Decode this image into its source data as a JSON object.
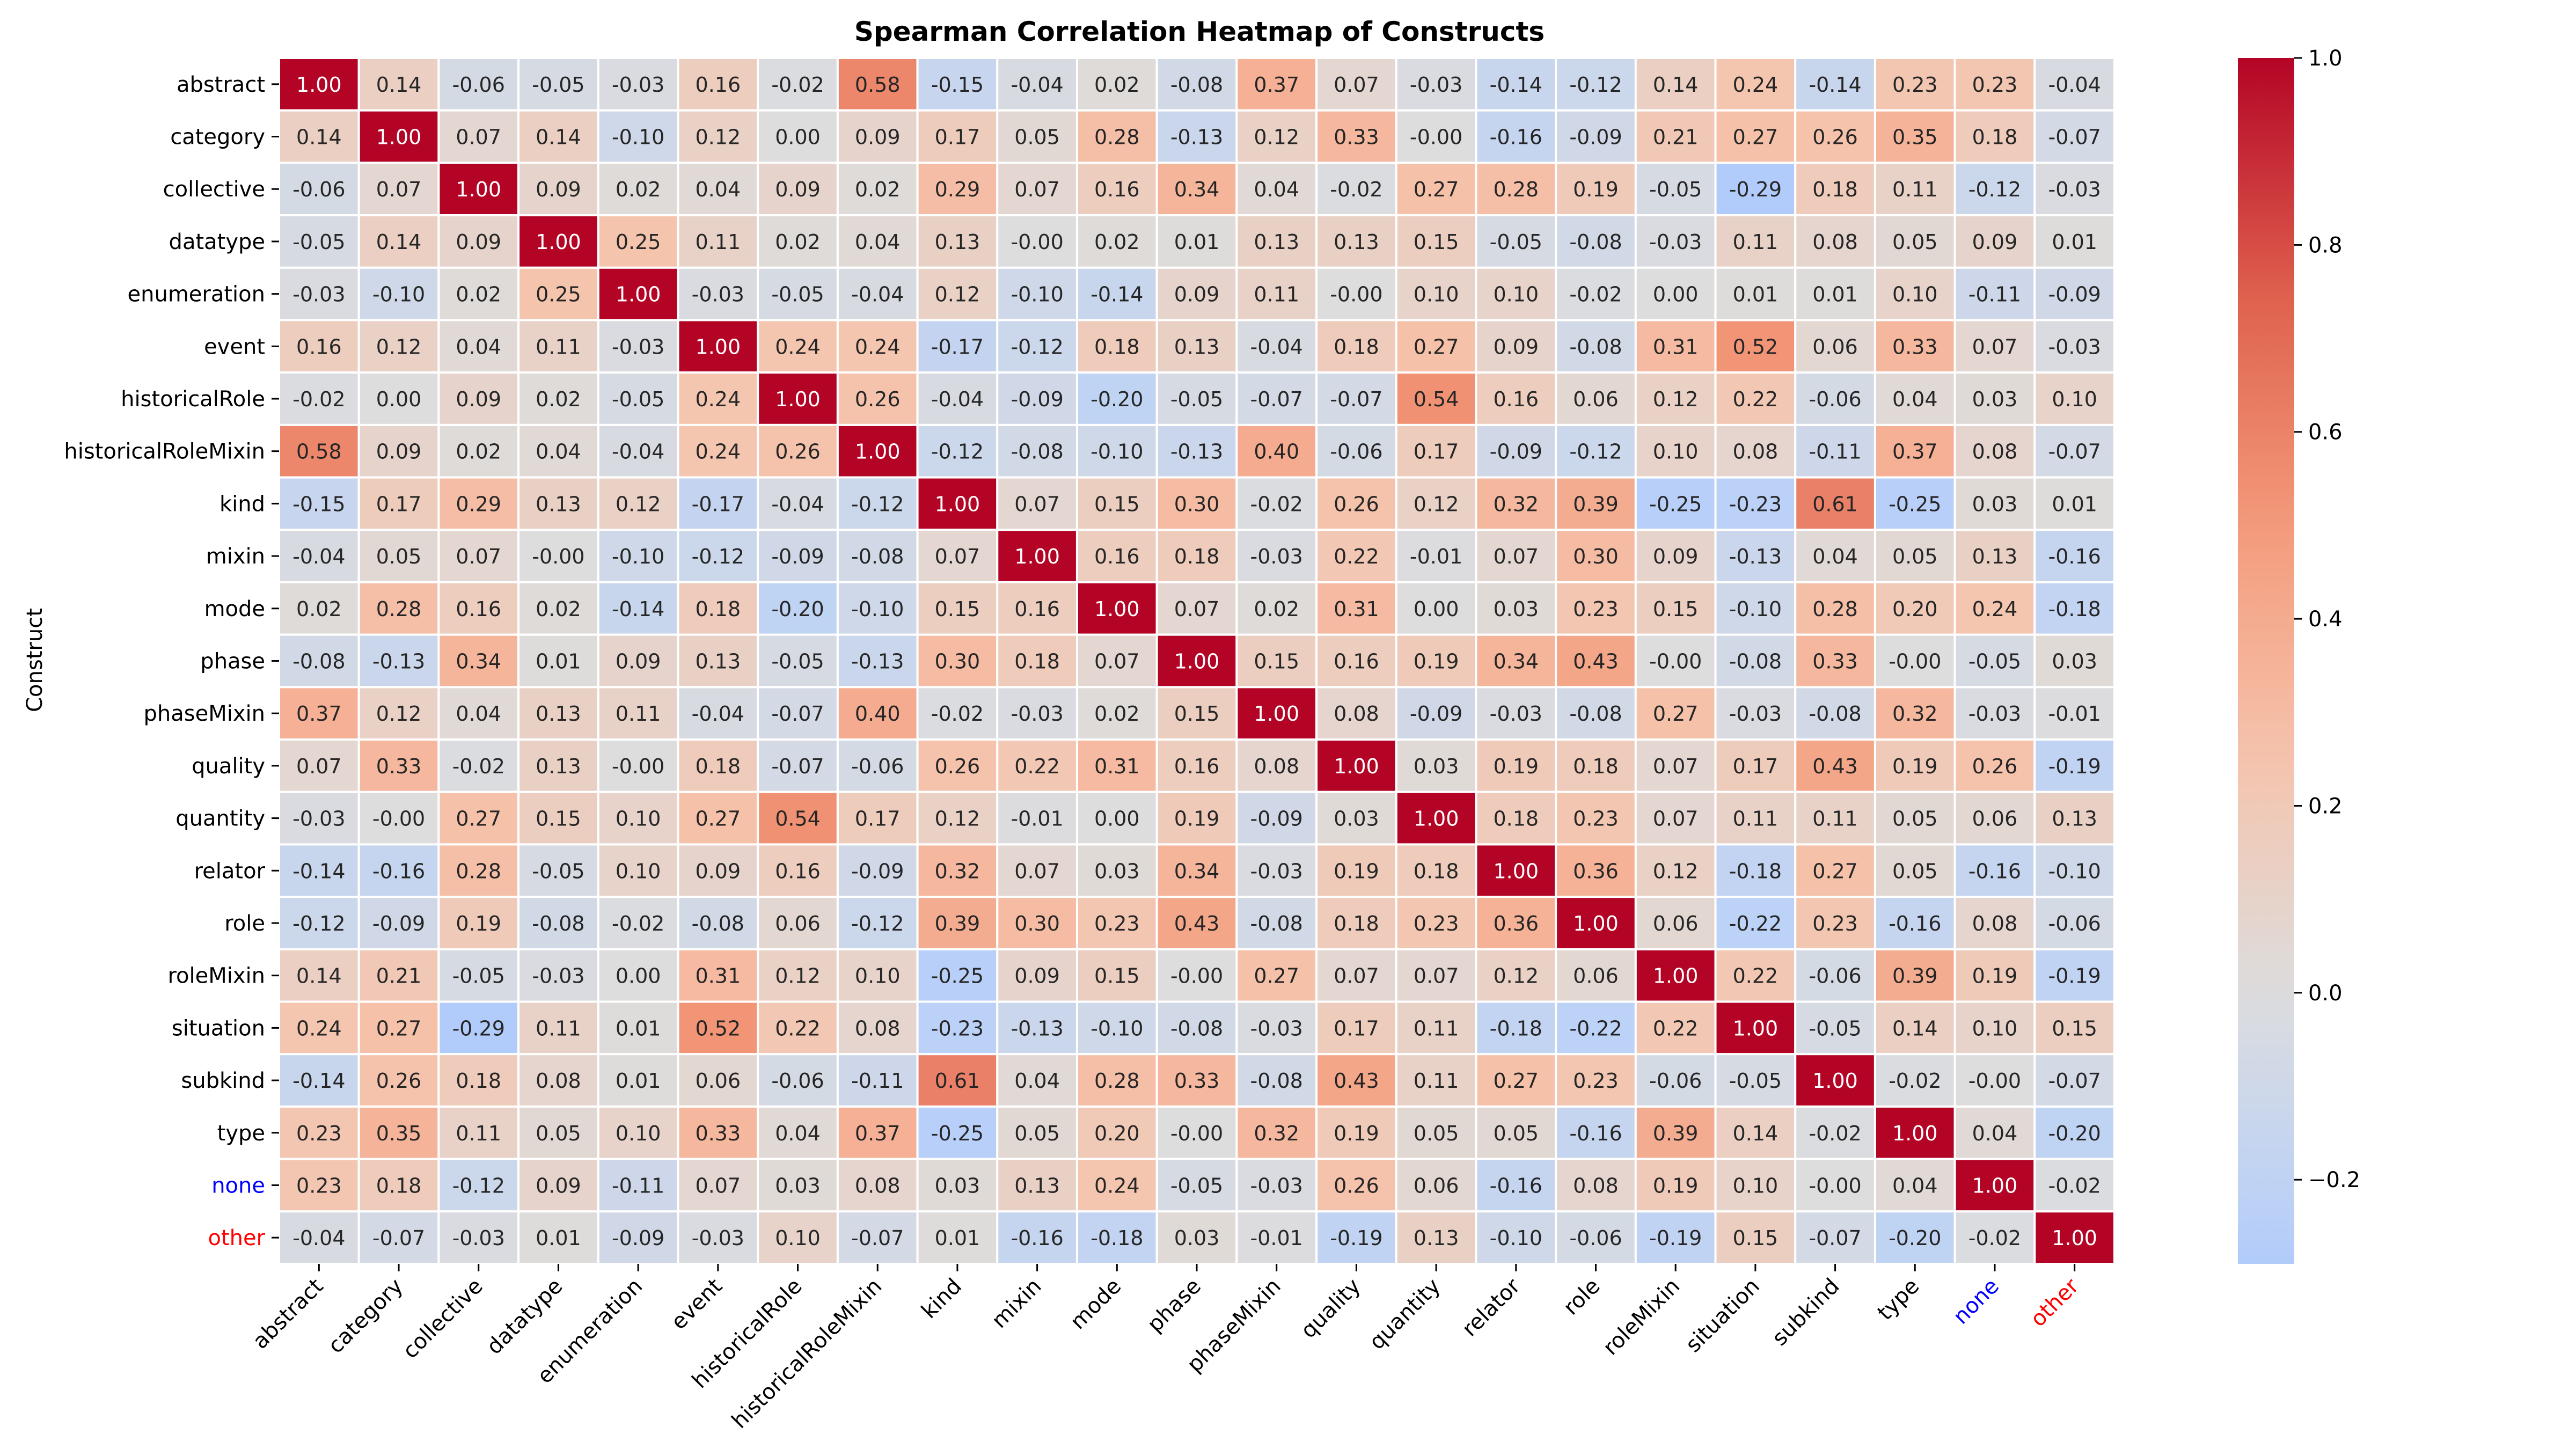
{
  "chart_data": {
    "type": "heatmap",
    "title": "Spearman Correlation Heatmap of Constructs",
    "ylabel": "Construct",
    "xlabel": "",
    "labels": [
      "abstract",
      "category",
      "collective",
      "datatype",
      "enumeration",
      "event",
      "historicalRole",
      "historicalRoleMixin",
      "kind",
      "mixin",
      "mode",
      "phase",
      "phaseMixin",
      "quality",
      "quantity",
      "relator",
      "role",
      "roleMixin",
      "situation",
      "subkind",
      "type",
      "none",
      "other"
    ],
    "label_colors": {
      "none": "#0000ff",
      "other": "#ff0000"
    },
    "colormap": "coolwarm",
    "vmin": -0.29,
    "vmax": 1.0,
    "colorbar_ticks": [
      1.0,
      0.8,
      0.6,
      0.4,
      0.2,
      0.0,
      -0.2
    ],
    "colorbar_tick_labels": [
      "1.0",
      "0.8",
      "0.6",
      "0.4",
      "0.2",
      "0.0",
      "−0.2"
    ],
    "values": [
      [
        1.0,
        0.14,
        -0.06,
        -0.05,
        -0.03,
        0.16,
        -0.02,
        0.58,
        -0.15,
        -0.04,
        0.02,
        -0.08,
        0.37,
        0.07,
        -0.03,
        -0.14,
        -0.12,
        0.14,
        0.24,
        -0.14,
        0.23,
        0.23,
        -0.04
      ],
      [
        0.14,
        1.0,
        0.07,
        0.14,
        -0.1,
        0.12,
        0.0,
        0.09,
        0.17,
        0.05,
        0.28,
        -0.13,
        0.12,
        0.33,
        -0.0,
        -0.16,
        -0.09,
        0.21,
        0.27,
        0.26,
        0.35,
        0.18,
        -0.07
      ],
      [
        -0.06,
        0.07,
        1.0,
        0.09,
        0.02,
        0.04,
        0.09,
        0.02,
        0.29,
        0.07,
        0.16,
        0.34,
        0.04,
        -0.02,
        0.27,
        0.28,
        0.19,
        -0.05,
        -0.29,
        0.18,
        0.11,
        -0.12,
        -0.03
      ],
      [
        -0.05,
        0.14,
        0.09,
        1.0,
        0.25,
        0.11,
        0.02,
        0.04,
        0.13,
        -0.0,
        0.02,
        0.01,
        0.13,
        0.13,
        0.15,
        -0.05,
        -0.08,
        -0.03,
        0.11,
        0.08,
        0.05,
        0.09,
        0.01
      ],
      [
        -0.03,
        -0.1,
        0.02,
        0.25,
        1.0,
        -0.03,
        -0.05,
        -0.04,
        0.12,
        -0.1,
        -0.14,
        0.09,
        0.11,
        -0.0,
        0.1,
        0.1,
        -0.02,
        0.0,
        0.01,
        0.01,
        0.1,
        -0.11,
        -0.09
      ],
      [
        0.16,
        0.12,
        0.04,
        0.11,
        -0.03,
        1.0,
        0.24,
        0.24,
        -0.17,
        -0.12,
        0.18,
        0.13,
        -0.04,
        0.18,
        0.27,
        0.09,
        -0.08,
        0.31,
        0.52,
        0.06,
        0.33,
        0.07,
        -0.03
      ],
      [
        -0.02,
        0.0,
        0.09,
        0.02,
        -0.05,
        0.24,
        1.0,
        0.26,
        -0.04,
        -0.09,
        -0.2,
        -0.05,
        -0.07,
        -0.07,
        0.54,
        0.16,
        0.06,
        0.12,
        0.22,
        -0.06,
        0.04,
        0.03,
        0.1
      ],
      [
        0.58,
        0.09,
        0.02,
        0.04,
        -0.04,
        0.24,
        0.26,
        1.0,
        -0.12,
        -0.08,
        -0.1,
        -0.13,
        0.4,
        -0.06,
        0.17,
        -0.09,
        -0.12,
        0.1,
        0.08,
        -0.11,
        0.37,
        0.08,
        -0.07
      ],
      [
        -0.15,
        0.17,
        0.29,
        0.13,
        0.12,
        -0.17,
        -0.04,
        -0.12,
        1.0,
        0.07,
        0.15,
        0.3,
        -0.02,
        0.26,
        0.12,
        0.32,
        0.39,
        -0.25,
        -0.23,
        0.61,
        -0.25,
        0.03,
        0.01
      ],
      [
        -0.04,
        0.05,
        0.07,
        -0.0,
        -0.1,
        -0.12,
        -0.09,
        -0.08,
        0.07,
        1.0,
        0.16,
        0.18,
        -0.03,
        0.22,
        -0.01,
        0.07,
        0.3,
        0.09,
        -0.13,
        0.04,
        0.05,
        0.13,
        -0.16
      ],
      [
        0.02,
        0.28,
        0.16,
        0.02,
        -0.14,
        0.18,
        -0.2,
        -0.1,
        0.15,
        0.16,
        1.0,
        0.07,
        0.02,
        0.31,
        0.0,
        0.03,
        0.23,
        0.15,
        -0.1,
        0.28,
        0.2,
        0.24,
        -0.18
      ],
      [
        -0.08,
        -0.13,
        0.34,
        0.01,
        0.09,
        0.13,
        -0.05,
        -0.13,
        0.3,
        0.18,
        0.07,
        1.0,
        0.15,
        0.16,
        0.19,
        0.34,
        0.43,
        -0.0,
        -0.08,
        0.33,
        -0.0,
        -0.05,
        0.03
      ],
      [
        0.37,
        0.12,
        0.04,
        0.13,
        0.11,
        -0.04,
        -0.07,
        0.4,
        -0.02,
        -0.03,
        0.02,
        0.15,
        1.0,
        0.08,
        -0.09,
        -0.03,
        -0.08,
        0.27,
        -0.03,
        -0.08,
        0.32,
        -0.03,
        -0.01
      ],
      [
        0.07,
        0.33,
        -0.02,
        0.13,
        -0.0,
        0.18,
        -0.07,
        -0.06,
        0.26,
        0.22,
        0.31,
        0.16,
        0.08,
        1.0,
        0.03,
        0.19,
        0.18,
        0.07,
        0.17,
        0.43,
        0.19,
        0.26,
        -0.19
      ],
      [
        -0.03,
        -0.0,
        0.27,
        0.15,
        0.1,
        0.27,
        0.54,
        0.17,
        0.12,
        -0.01,
        0.0,
        0.19,
        -0.09,
        0.03,
        1.0,
        0.18,
        0.23,
        0.07,
        0.11,
        0.11,
        0.05,
        0.06,
        0.13
      ],
      [
        -0.14,
        -0.16,
        0.28,
        -0.05,
        0.1,
        0.09,
        0.16,
        -0.09,
        0.32,
        0.07,
        0.03,
        0.34,
        -0.03,
        0.19,
        0.18,
        1.0,
        0.36,
        0.12,
        -0.18,
        0.27,
        0.05,
        -0.16,
        -0.1
      ],
      [
        -0.12,
        -0.09,
        0.19,
        -0.08,
        -0.02,
        -0.08,
        0.06,
        -0.12,
        0.39,
        0.3,
        0.23,
        0.43,
        -0.08,
        0.18,
        0.23,
        0.36,
        1.0,
        0.06,
        -0.22,
        0.23,
        -0.16,
        0.08,
        -0.06
      ],
      [
        0.14,
        0.21,
        -0.05,
        -0.03,
        0.0,
        0.31,
        0.12,
        0.1,
        -0.25,
        0.09,
        0.15,
        -0.0,
        0.27,
        0.07,
        0.07,
        0.12,
        0.06,
        1.0,
        0.22,
        -0.06,
        0.39,
        0.19,
        -0.19
      ],
      [
        0.24,
        0.27,
        -0.29,
        0.11,
        0.01,
        0.52,
        0.22,
        0.08,
        -0.23,
        -0.13,
        -0.1,
        -0.08,
        -0.03,
        0.17,
        0.11,
        -0.18,
        -0.22,
        0.22,
        1.0,
        -0.05,
        0.14,
        0.1,
        0.15
      ],
      [
        -0.14,
        0.26,
        0.18,
        0.08,
        0.01,
        0.06,
        -0.06,
        -0.11,
        0.61,
        0.04,
        0.28,
        0.33,
        -0.08,
        0.43,
        0.11,
        0.27,
        0.23,
        -0.06,
        -0.05,
        1.0,
        -0.02,
        -0.0,
        -0.07
      ],
      [
        0.23,
        0.35,
        0.11,
        0.05,
        0.1,
        0.33,
        0.04,
        0.37,
        -0.25,
        0.05,
        0.2,
        -0.0,
        0.32,
        0.19,
        0.05,
        0.05,
        -0.16,
        0.39,
        0.14,
        -0.02,
        1.0,
        0.04,
        -0.2
      ],
      [
        0.23,
        0.18,
        -0.12,
        0.09,
        -0.11,
        0.07,
        0.03,
        0.08,
        0.03,
        0.13,
        0.24,
        -0.05,
        -0.03,
        0.26,
        0.06,
        -0.16,
        0.08,
        0.19,
        0.1,
        -0.0,
        0.04,
        1.0,
        -0.02
      ],
      [
        -0.04,
        -0.07,
        -0.03,
        0.01,
        -0.09,
        -0.03,
        0.1,
        -0.07,
        0.01,
        -0.16,
        -0.18,
        0.03,
        -0.01,
        -0.19,
        0.13,
        -0.1,
        -0.06,
        -0.19,
        0.15,
        -0.07,
        -0.2,
        -0.02,
        1.0
      ]
    ]
  }
}
